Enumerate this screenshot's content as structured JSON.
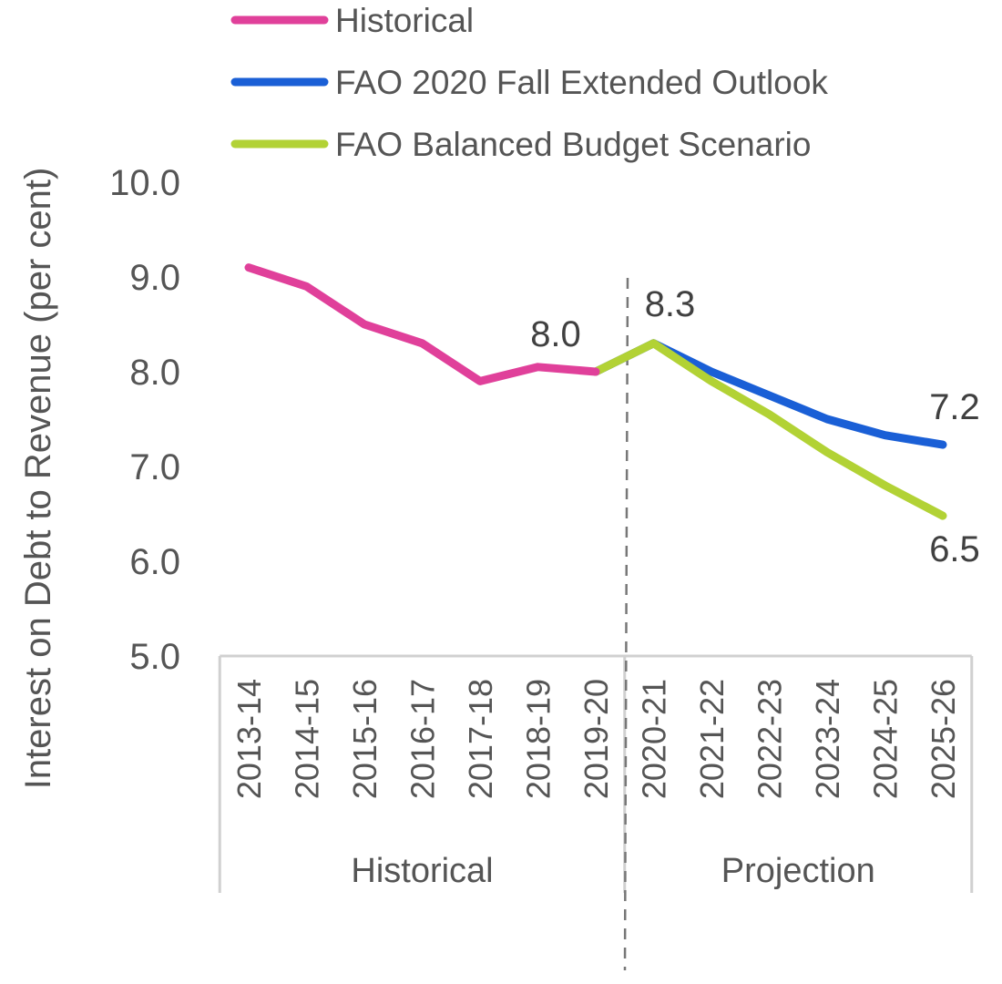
{
  "chart_data": {
    "type": "line",
    "title": "",
    "ylabel": "Interest on Debt to Revenue (per cent)",
    "xlabel": "",
    "ylim": [
      5.0,
      10.0
    ],
    "yticks": [
      "5.0",
      "6.0",
      "7.0",
      "8.0",
      "9.0",
      "10.0"
    ],
    "grid": false,
    "legend_position": "top-left",
    "categories": [
      "2013-14",
      "2014-15",
      "2015-16",
      "2016-17",
      "2017-18",
      "2018-19",
      "2019-20",
      "2020-21",
      "2021-22",
      "2022-23",
      "2023-24",
      "2024-25",
      "2025-26"
    ],
    "groups": [
      {
        "label": "Historical",
        "from": 0,
        "to": 6
      },
      {
        "label": "Projection",
        "from": 7,
        "to": 12
      }
    ],
    "series": [
      {
        "name": "Historical",
        "color": "#E0409A",
        "values": [
          9.1,
          8.9,
          8.5,
          8.3,
          7.9,
          8.05,
          8.0,
          null,
          null,
          null,
          null,
          null,
          null
        ]
      },
      {
        "name": "FAO 2020 Fall Extended Outlook",
        "color": "#1A5FD6",
        "values": [
          null,
          null,
          null,
          null,
          null,
          null,
          8.0,
          8.3,
          8.0,
          7.75,
          7.5,
          7.33,
          7.23
        ]
      },
      {
        "name": "FAO Balanced Budget Scenario",
        "color": "#B2D235",
        "values": [
          null,
          null,
          null,
          null,
          null,
          null,
          8.0,
          8.3,
          7.9,
          7.55,
          7.15,
          6.8,
          6.48
        ]
      }
    ],
    "annotations": [
      {
        "text": "8.0",
        "series": 0,
        "index": 6
      },
      {
        "text": "8.3",
        "series": 1,
        "index": 7
      },
      {
        "text": "7.2",
        "series": 1,
        "index": 12
      },
      {
        "text": "6.5",
        "series": 2,
        "index": 12
      }
    ],
    "divider_between": [
      6,
      7
    ]
  }
}
